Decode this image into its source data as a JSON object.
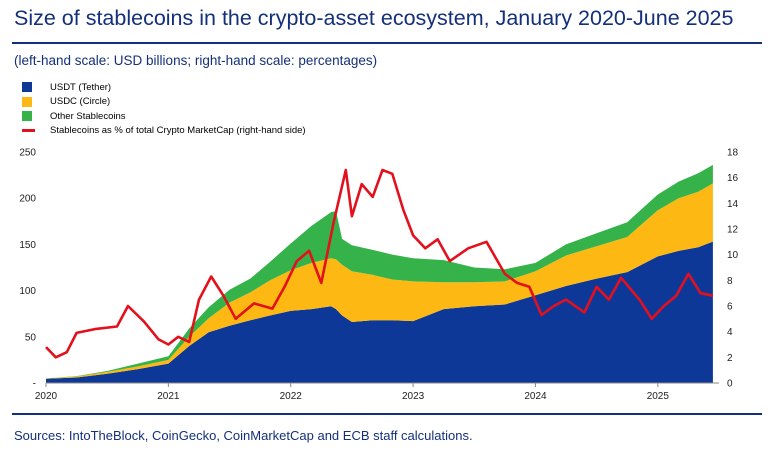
{
  "title": "Size of stablecoins in the crypto-asset ecosystem, January 2020-June 2025",
  "subtitle": "(left-hand scale: USD billions; right-hand scale: percentages)",
  "source": "Sources: IntoTheBlock, CoinGecko, CoinMarketCap and ECB staff calculations.",
  "colors": {
    "usdt": "#0e3897",
    "usdc": "#fdb813",
    "other": "#36b24a",
    "ratio": "#e3101d",
    "rule": "#14307a"
  },
  "chart_data": {
    "type": "area",
    "stacked": true,
    "legend": [
      {
        "label": "USDT (Tether)",
        "kind": "area"
      },
      {
        "label": "USDC (Circle)",
        "kind": "area"
      },
      {
        "label": "Other Stablecoins",
        "kind": "area"
      },
      {
        "label": "Stablecoins as % of total Crypto MarketCap (right-hand side)",
        "kind": "line"
      }
    ],
    "legend_position": "top-left",
    "x_tick_labels": [
      "2020",
      "2021",
      "2022",
      "2023",
      "2024",
      "2025"
    ],
    "y_left_ticks": [
      "-",
      "50",
      "100",
      "150",
      "200",
      "250"
    ],
    "y_right_ticks": [
      "0",
      "2",
      "4",
      "6",
      "8",
      "10",
      "12",
      "14",
      "16",
      "18"
    ],
    "y_left_range": [
      0,
      250
    ],
    "y_right_range": [
      0,
      18
    ],
    "x_range": [
      2020.0,
      2025.5
    ],
    "x": [
      2020.0,
      2020.25,
      2020.5,
      2020.75,
      2021.0,
      2021.17,
      2021.33,
      2021.5,
      2021.67,
      2021.83,
      2022.0,
      2022.17,
      2022.33,
      2022.37,
      2022.42,
      2022.5,
      2022.67,
      2022.83,
      2023.0,
      2023.25,
      2023.5,
      2023.75,
      2024.0,
      2024.25,
      2024.5,
      2024.75,
      2025.0,
      2025.17,
      2025.33,
      2025.45
    ],
    "series": [
      {
        "name": "USDT (Tether)",
        "values": [
          4.5,
          6,
          10,
          15,
          21,
          40,
          55,
          62,
          68,
          73,
          78,
          80,
          83,
          80,
          73,
          66,
          68,
          68,
          67,
          80,
          83,
          85,
          95,
          105,
          113,
          120,
          137,
          143,
          147,
          153
        ]
      },
      {
        "name": "USDC (Circle)",
        "values": [
          0.5,
          1,
          2,
          3,
          4,
          10,
          15,
          25,
          30,
          38,
          44,
          50,
          52,
          54,
          55,
          55,
          49,
          44,
          43,
          29,
          26,
          25,
          26,
          33,
          35,
          38,
          50,
          57,
          60,
          63
        ]
      },
      {
        "name": "Other Stablecoins",
        "values": [
          0,
          0.5,
          1,
          3,
          4,
          9,
          12,
          14,
          15,
          20,
          29,
          40,
          50,
          52,
          28,
          28,
          27,
          27,
          25,
          24,
          16,
          13,
          9,
          12,
          14,
          16,
          17,
          18,
          20,
          20
        ]
      },
      {
        "name": "Stablecoins as % of total Crypto MarketCap (right-hand side)",
        "axis": "right",
        "x": [
          2020.0,
          2020.08,
          2020.17,
          2020.25,
          2020.4,
          2020.58,
          2020.67,
          2020.8,
          2020.92,
          2021.0,
          2021.08,
          2021.17,
          2021.25,
          2021.35,
          2021.45,
          2021.55,
          2021.7,
          2021.85,
          2021.95,
          2022.05,
          2022.15,
          2022.25,
          2022.35,
          2022.45,
          2022.5,
          2022.58,
          2022.67,
          2022.75,
          2022.83,
          2022.92,
          2023.0,
          2023.1,
          2023.2,
          2023.3,
          2023.45,
          2023.6,
          2023.75,
          2023.85,
          2023.95,
          2024.05,
          2024.15,
          2024.25,
          2024.4,
          2024.5,
          2024.6,
          2024.7,
          2024.85,
          2024.95,
          2025.05,
          2025.15,
          2025.25,
          2025.35,
          2025.45
        ],
        "values": [
          2.8,
          2.0,
          2.4,
          3.9,
          4.2,
          4.4,
          6.0,
          4.8,
          3.4,
          3.0,
          3.6,
          3.2,
          6.5,
          8.3,
          6.8,
          5.0,
          6.2,
          5.8,
          7.5,
          9.5,
          10.3,
          7.8,
          12.5,
          16.6,
          13.0,
          15.5,
          14.5,
          16.6,
          16.3,
          13.5,
          11.5,
          10.5,
          11.2,
          9.5,
          10.5,
          11.0,
          8.5,
          7.8,
          7.5,
          5.3,
          6.0,
          6.5,
          5.5,
          7.5,
          6.5,
          8.2,
          6.5,
          5.0,
          6.0,
          6.8,
          8.5,
          7.0,
          6.8
        ]
      }
    ]
  }
}
